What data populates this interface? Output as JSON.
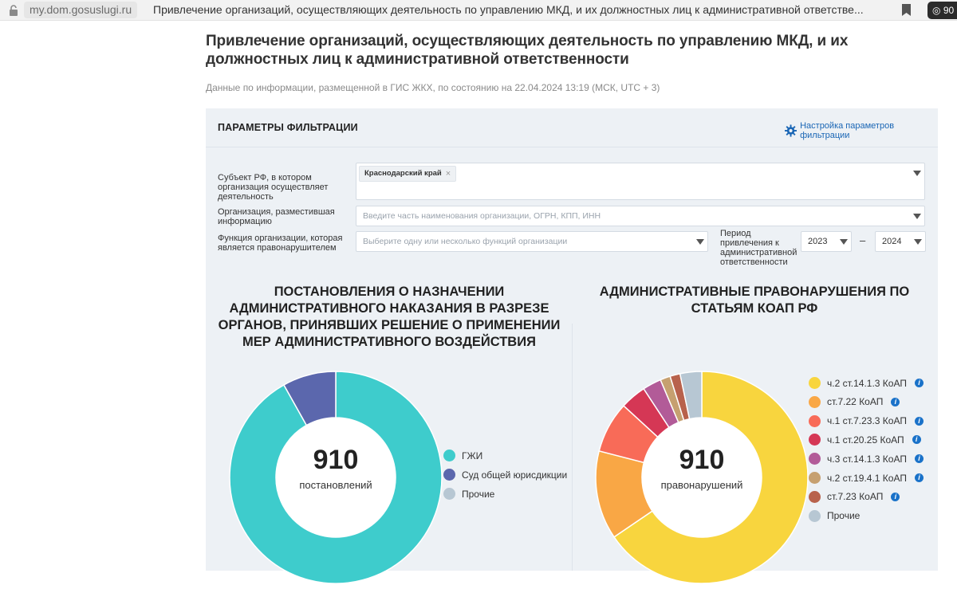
{
  "browser": {
    "domain": "my.dom.gosuslugi.ru",
    "tab_title": "Привлечение организаций, осуществляющих деятельность по управлению МКД, и их должностных лиц к административной ответстве...",
    "ext_label": "90"
  },
  "page": {
    "title": "Привлечение организаций, осуществляющих деятельность по управлению МКД, и их должностных лиц к административной ответственности",
    "subtitle": "Данные по информации, размещенной в ГИС ЖКХ, по состоянию на 22.04.2024 13:19 (МСК, UTC + 3)"
  },
  "filters": {
    "header": "ПАРАМЕТРЫ ФИЛЬТРАЦИИ",
    "settings_link": "Настройка параметров фильтрации",
    "subject_label": "Субъект РФ, в котором организация осуществляет деятельность",
    "subject_chip": "Краснодарский край",
    "org_label": "Организация, разместившая информацию",
    "org_placeholder": "Введите часть наименования организации, ОГРН, КПП, ИНН",
    "func_label": "Функция организации, которая является правонарушителем",
    "func_placeholder": "Выберите одну или несколько функций организации",
    "period_label": "Период привлечения к административной ответственности",
    "year_from": "2023",
    "year_to": "2024",
    "dash": "–"
  },
  "chart_data": [
    {
      "type": "pie",
      "title": "ПОСТАНОВЛЕНИЯ О НАЗНАЧЕНИИ АДМИНИСТРАТИВНОГО НАКАЗАНИЯ В РАЗРЕЗЕ ОРГАНОВ, ПРИНЯВШИХ РЕШЕНИЕ О ПРИМЕНЕНИИ МЕР АДМИНИСТРАТИВНОГО ВОЗДЕЙСТВИЯ",
      "total": "910",
      "total_label": "постановлений",
      "series": [
        {
          "name": "ГЖИ",
          "value": 836,
          "color": "#3ecccc"
        },
        {
          "name": "Суд общей юрисдикции",
          "value": 74,
          "color": "#5b67ad"
        },
        {
          "name": "Прочие",
          "value": 0,
          "color": "#b7c7d3"
        }
      ]
    },
    {
      "type": "pie",
      "title": "АДМИНИСТРАТИВНЫЕ ПРАВОНАРУШЕНИЯ ПО СТАТЬЯМ КОАП РФ",
      "total": "910",
      "total_label": "правонарушений",
      "series": [
        {
          "name": "ч.2 ст.14.1.3 КоАП",
          "value": 596,
          "color": "#f8d53e",
          "info": true
        },
        {
          "name": "ст.7.22 КоАП",
          "value": 123,
          "color": "#f9a745",
          "info": true
        },
        {
          "name": "ч.1 ст.7.23.3 КоАП",
          "value": 71,
          "color": "#f86b58",
          "info": true
        },
        {
          "name": "ч.1 ст.20.25 КоАП",
          "value": 36,
          "color": "#d53755",
          "info": true
        },
        {
          "name": "ч.3 ст.14.1.3 КоАП",
          "value": 26,
          "color": "#b25b98",
          "info": true
        },
        {
          "name": "ч.2 ст.19.4.1 КоАП",
          "value": 14,
          "color": "#c6a070",
          "info": true
        },
        {
          "name": "ст.7.23 КоАП",
          "value": 14,
          "color": "#b8624c",
          "info": true
        },
        {
          "name": "Прочие",
          "value": 30,
          "color": "#b7c7d3",
          "info": false
        }
      ]
    }
  ]
}
